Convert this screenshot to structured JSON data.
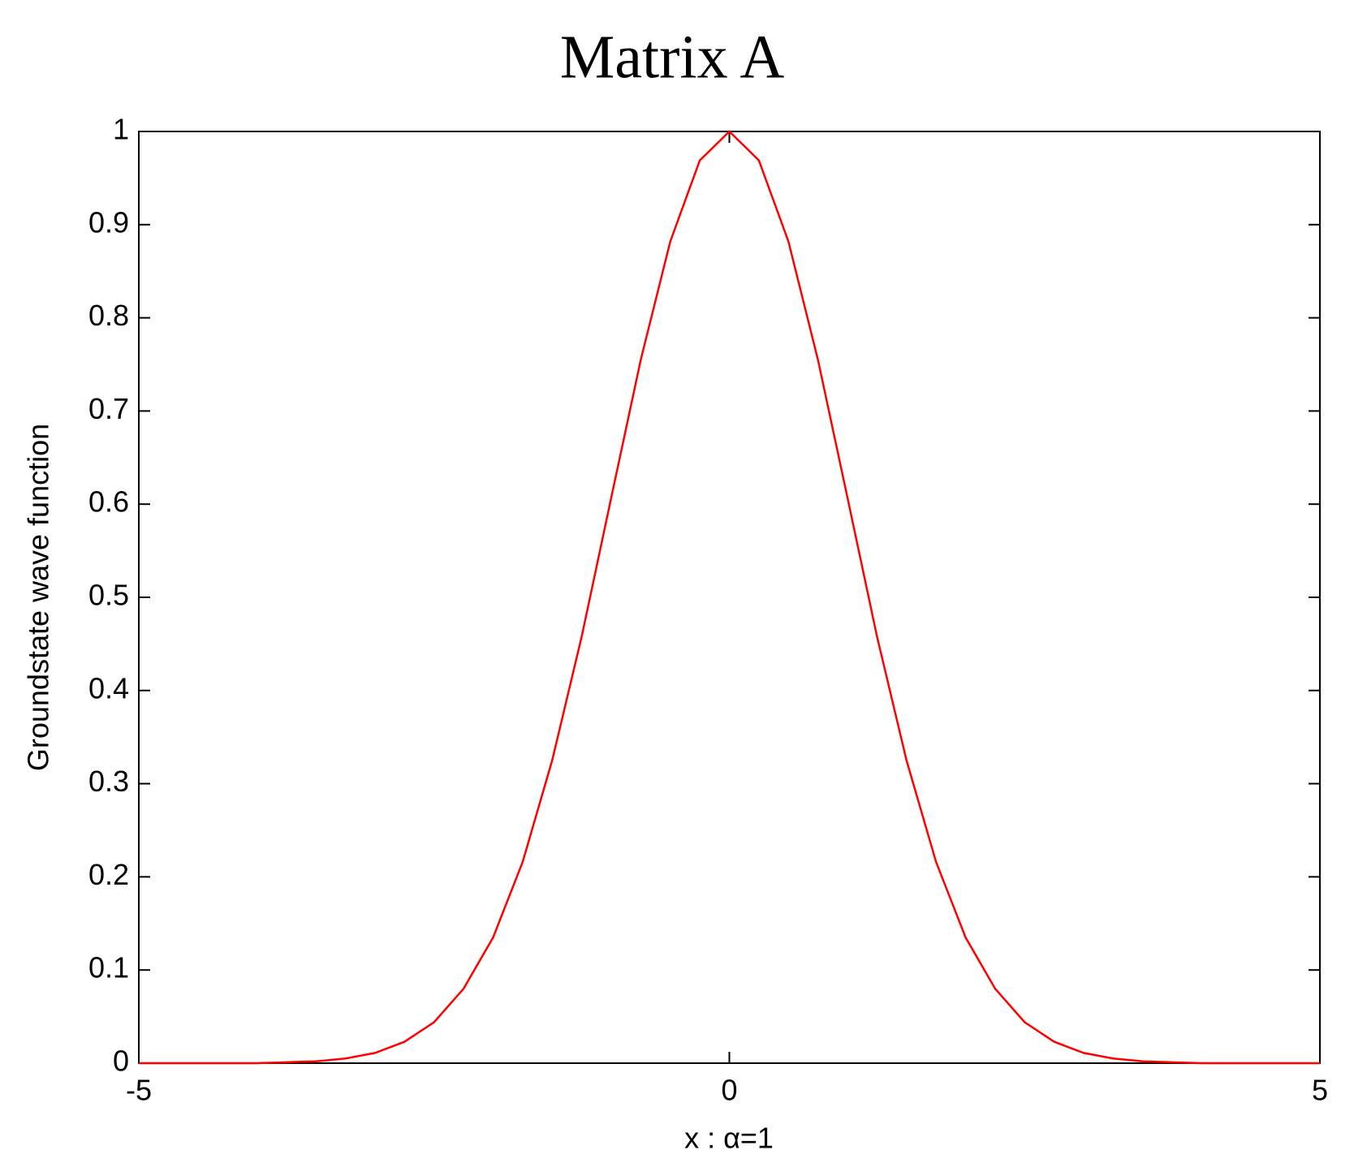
{
  "chart_data": {
    "type": "line",
    "title": "Matrix A",
    "xlabel": "x : α=1",
    "ylabel": "Groundstate wave function",
    "x": [
      -5,
      -4.75,
      -4.5,
      -4.25,
      -4,
      -3.75,
      -3.5,
      -3.25,
      -3,
      -2.75,
      -2.5,
      -2.25,
      -2,
      -1.75,
      -1.5,
      -1.25,
      -1,
      -0.75,
      -0.5,
      -0.25,
      0,
      0.25,
      0.5,
      0.75,
      1,
      1.25,
      1.5,
      1.75,
      2,
      2.25,
      2.5,
      2.75,
      3,
      3.25,
      3.5,
      3.75,
      4,
      4.25,
      4.5,
      4.75,
      5
    ],
    "series": [
      {
        "name": "groundstate",
        "color": "#ff0000",
        "values": [
          0,
          0,
          0,
          0,
          0,
          0.001,
          0.002,
          0.005,
          0.011,
          0.023,
          0.044,
          0.08,
          0.135,
          0.216,
          0.325,
          0.458,
          0.607,
          0.755,
          0.882,
          0.969,
          1,
          0.969,
          0.882,
          0.755,
          0.607,
          0.458,
          0.325,
          0.216,
          0.135,
          0.08,
          0.044,
          0.023,
          0.011,
          0.005,
          0.002,
          0.001,
          0,
          0,
          0,
          0,
          0
        ]
      }
    ],
    "xlim": [
      -5,
      5
    ],
    "xticks": [
      -5,
      0,
      5
    ],
    "ylim": [
      0,
      1
    ],
    "yticks": [
      0,
      0.1,
      0.2,
      0.3,
      0.4,
      0.5,
      0.6,
      0.7,
      0.8,
      0.9,
      1
    ],
    "grid": false
  }
}
